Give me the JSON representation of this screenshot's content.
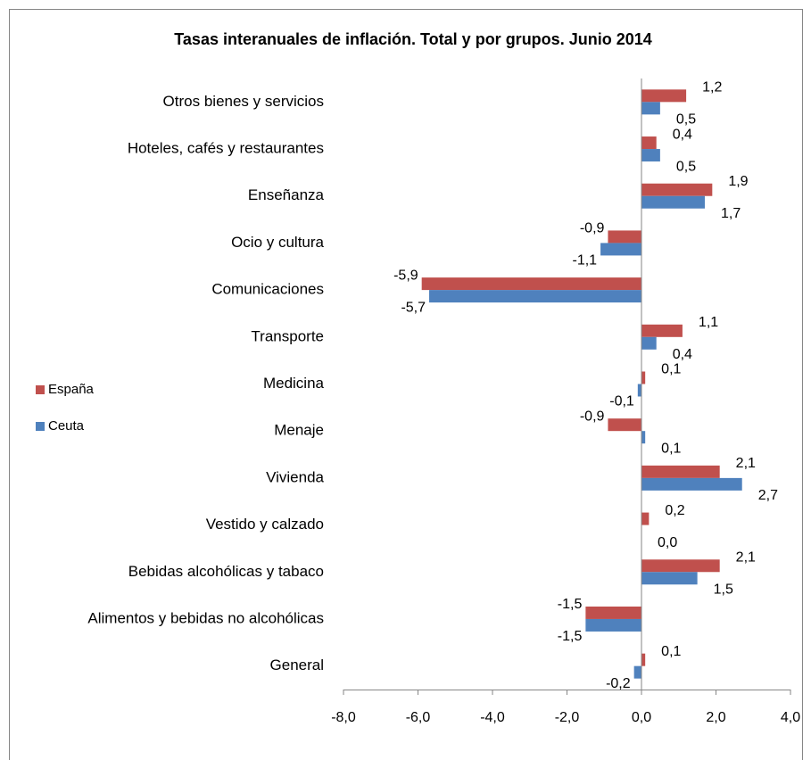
{
  "chart_data": {
    "type": "hbar",
    "title": "Tasas interanuales de inflación. Total y por grupos. Junio 2014",
    "categories": [
      "Otros bienes y servicios",
      "Hoteles, cafés y restaurantes",
      "Enseñanza",
      "Ocio y cultura",
      "Comunicaciones",
      "Transporte",
      "Medicina",
      "Menaje",
      "Vivienda",
      "Vestido y calzado",
      "Bebidas alcohólicas y tabaco",
      "Alimentos y bebidas no alcohólicas",
      "General"
    ],
    "series": [
      {
        "name": "España",
        "color": "#c0504d",
        "values": [
          1.2,
          0.4,
          1.9,
          -0.9,
          -5.9,
          1.1,
          0.1,
          -0.9,
          2.1,
          0.2,
          2.1,
          -1.5,
          0.1
        ],
        "value_labels": [
          "1,2",
          "0,4",
          "1,9",
          "-0,9",
          "-5,9",
          "1,1",
          "0,1",
          "-0,9",
          "2,1",
          "0,2",
          "2,1",
          "-1,5",
          "0,1"
        ]
      },
      {
        "name": "Ceuta",
        "color": "#4f81bd",
        "values": [
          0.5,
          0.5,
          1.7,
          -1.1,
          -5.7,
          0.4,
          -0.1,
          0.1,
          2.7,
          0.0,
          1.5,
          -1.5,
          -0.2
        ],
        "value_labels": [
          "0,5",
          "0,5",
          "1,7",
          "-1,1",
          "-5,7",
          "0,4",
          "-0,1",
          "0,1",
          "2,7",
          "0,0",
          "1,5",
          "-1,5",
          "-0,2"
        ]
      }
    ],
    "xlim": [
      -8,
      4
    ],
    "xticks": [
      {
        "value": -8,
        "label": "-8,0"
      },
      {
        "value": -6,
        "label": "-6,0"
      },
      {
        "value": -4,
        "label": "-4,0"
      },
      {
        "value": -2,
        "label": "-2,0"
      },
      {
        "value": 0,
        "label": "0,0"
      },
      {
        "value": 2,
        "label": "2,0"
      },
      {
        "value": 4,
        "label": "4,0"
      }
    ],
    "legend": "left"
  }
}
